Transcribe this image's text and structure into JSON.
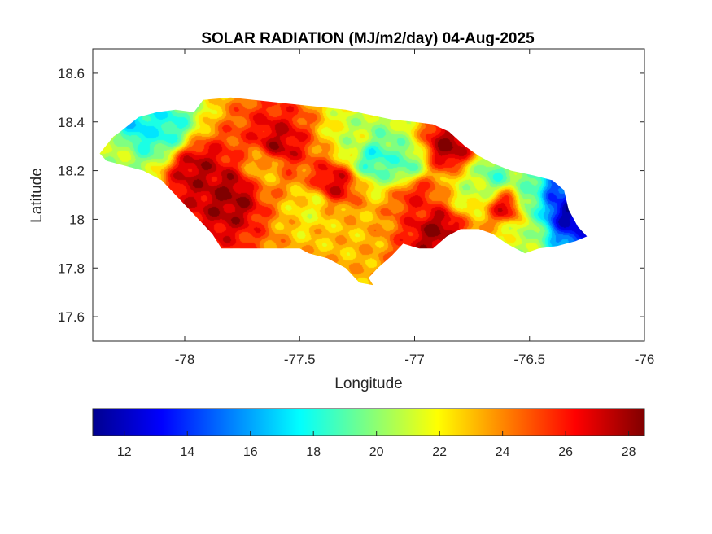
{
  "chart_data": {
    "type": "heatmap",
    "title": "SOLAR RADIATION (MJ/m2/day) 04-Aug-2025",
    "xlabel": "Longitude",
    "ylabel": "Latitude",
    "xlim": [
      -78.4,
      -76
    ],
    "ylim": [
      17.5,
      18.7
    ],
    "xticks": [
      -78,
      -77.5,
      -77,
      -76.5,
      -76
    ],
    "xtick_labels": [
      "-78",
      "-77.5",
      "-77",
      "-76.5",
      "-76"
    ],
    "yticks": [
      17.6,
      17.8,
      18,
      18.2,
      18.4,
      18.6
    ],
    "ytick_labels": [
      "17.6",
      "17.8",
      "18",
      "18.2",
      "18.4",
      "18.6"
    ],
    "colormap": "jet",
    "colorbar": {
      "orientation": "horizontal",
      "placement": "bottom",
      "range": [
        11,
        28.5
      ],
      "ticks": [
        12,
        14,
        16,
        18,
        20,
        22,
        24,
        26,
        28
      ],
      "tick_labels": [
        "12",
        "14",
        "16",
        "18",
        "20",
        "22",
        "24",
        "26",
        "28"
      ]
    },
    "outline": [
      [
        -78.37,
        18.27
      ],
      [
        -78.31,
        18.34
      ],
      [
        -78.28,
        18.36
      ],
      [
        -78.2,
        18.42
      ],
      [
        -78.12,
        18.44
      ],
      [
        -78.04,
        18.45
      ],
      [
        -77.96,
        18.44
      ],
      [
        -77.92,
        18.49
      ],
      [
        -77.8,
        18.5
      ],
      [
        -77.7,
        18.49
      ],
      [
        -77.6,
        18.48
      ],
      [
        -77.5,
        18.47
      ],
      [
        -77.4,
        18.46
      ],
      [
        -77.3,
        18.45
      ],
      [
        -77.2,
        18.43
      ],
      [
        -77.1,
        18.41
      ],
      [
        -77.0,
        18.4
      ],
      [
        -76.92,
        18.39
      ],
      [
        -76.85,
        18.36
      ],
      [
        -76.78,
        18.3
      ],
      [
        -76.72,
        18.26
      ],
      [
        -76.66,
        18.23
      ],
      [
        -76.58,
        18.2
      ],
      [
        -76.48,
        18.18
      ],
      [
        -76.4,
        18.16
      ],
      [
        -76.35,
        18.12
      ],
      [
        -76.33,
        18.04
      ],
      [
        -76.29,
        17.97
      ],
      [
        -76.25,
        17.93
      ],
      [
        -76.3,
        17.91
      ],
      [
        -76.38,
        17.89
      ],
      [
        -76.46,
        17.88
      ],
      [
        -76.52,
        17.86
      ],
      [
        -76.6,
        17.9
      ],
      [
        -76.66,
        17.94
      ],
      [
        -76.72,
        17.96
      ],
      [
        -76.8,
        17.96
      ],
      [
        -76.86,
        17.93
      ],
      [
        -76.92,
        17.88
      ],
      [
        -76.98,
        17.88
      ],
      [
        -77.05,
        17.9
      ],
      [
        -77.1,
        17.85
      ],
      [
        -77.16,
        17.8
      ],
      [
        -77.2,
        17.76
      ],
      [
        -77.18,
        17.73
      ],
      [
        -77.24,
        17.74
      ],
      [
        -77.3,
        17.8
      ],
      [
        -77.38,
        17.84
      ],
      [
        -77.46,
        17.86
      ],
      [
        -77.5,
        17.88
      ],
      [
        -77.58,
        17.88
      ],
      [
        -77.66,
        17.88
      ],
      [
        -77.74,
        17.88
      ],
      [
        -77.84,
        17.88
      ],
      [
        -77.88,
        17.94
      ],
      [
        -77.96,
        18.02
      ],
      [
        -78.04,
        18.1
      ],
      [
        -78.1,
        18.16
      ],
      [
        -78.18,
        18.2
      ],
      [
        -78.26,
        18.22
      ],
      [
        -78.34,
        18.24
      ]
    ],
    "field_features": [
      {
        "lon": -76.33,
        "lat": 18.04,
        "value": 11.5
      },
      {
        "lon": -76.37,
        "lat": 18.09,
        "value": 14
      },
      {
        "lon": -76.5,
        "lat": 18.08,
        "value": 19
      },
      {
        "lon": -76.55,
        "lat": 17.95,
        "value": 21
      },
      {
        "lon": -77.18,
        "lat": 18.26,
        "value": 18
      },
      {
        "lon": -77.05,
        "lat": 18.22,
        "value": 19
      },
      {
        "lon": -77.25,
        "lat": 18.32,
        "value": 21
      },
      {
        "lon": -78.22,
        "lat": 18.38,
        "value": 17
      },
      {
        "lon": -78.1,
        "lat": 18.38,
        "value": 18
      },
      {
        "lon": -78.3,
        "lat": 18.3,
        "value": 21
      },
      {
        "lon": -77.65,
        "lat": 18.22,
        "value": 23
      },
      {
        "lon": -77.45,
        "lat": 18.05,
        "value": 22
      },
      {
        "lon": -77.3,
        "lat": 17.95,
        "value": 23
      },
      {
        "lon": -76.75,
        "lat": 18.12,
        "value": 21
      },
      {
        "lon": -76.65,
        "lat": 18.18,
        "value": 19
      },
      {
        "lon": -77.8,
        "lat": 18.1,
        "value": 28
      },
      {
        "lon": -77.6,
        "lat": 18.3,
        "value": 27.5
      },
      {
        "lon": -77.35,
        "lat": 18.15,
        "value": 27
      },
      {
        "lon": -76.9,
        "lat": 17.95,
        "value": 28
      },
      {
        "lon": -76.85,
        "lat": 18.3,
        "value": 28
      },
      {
        "lon": -77.95,
        "lat": 18.2,
        "value": 27.5
      },
      {
        "lon": -77.0,
        "lat": 18.1,
        "value": 26
      },
      {
        "lon": -76.6,
        "lat": 18.05,
        "value": 27
      }
    ]
  }
}
